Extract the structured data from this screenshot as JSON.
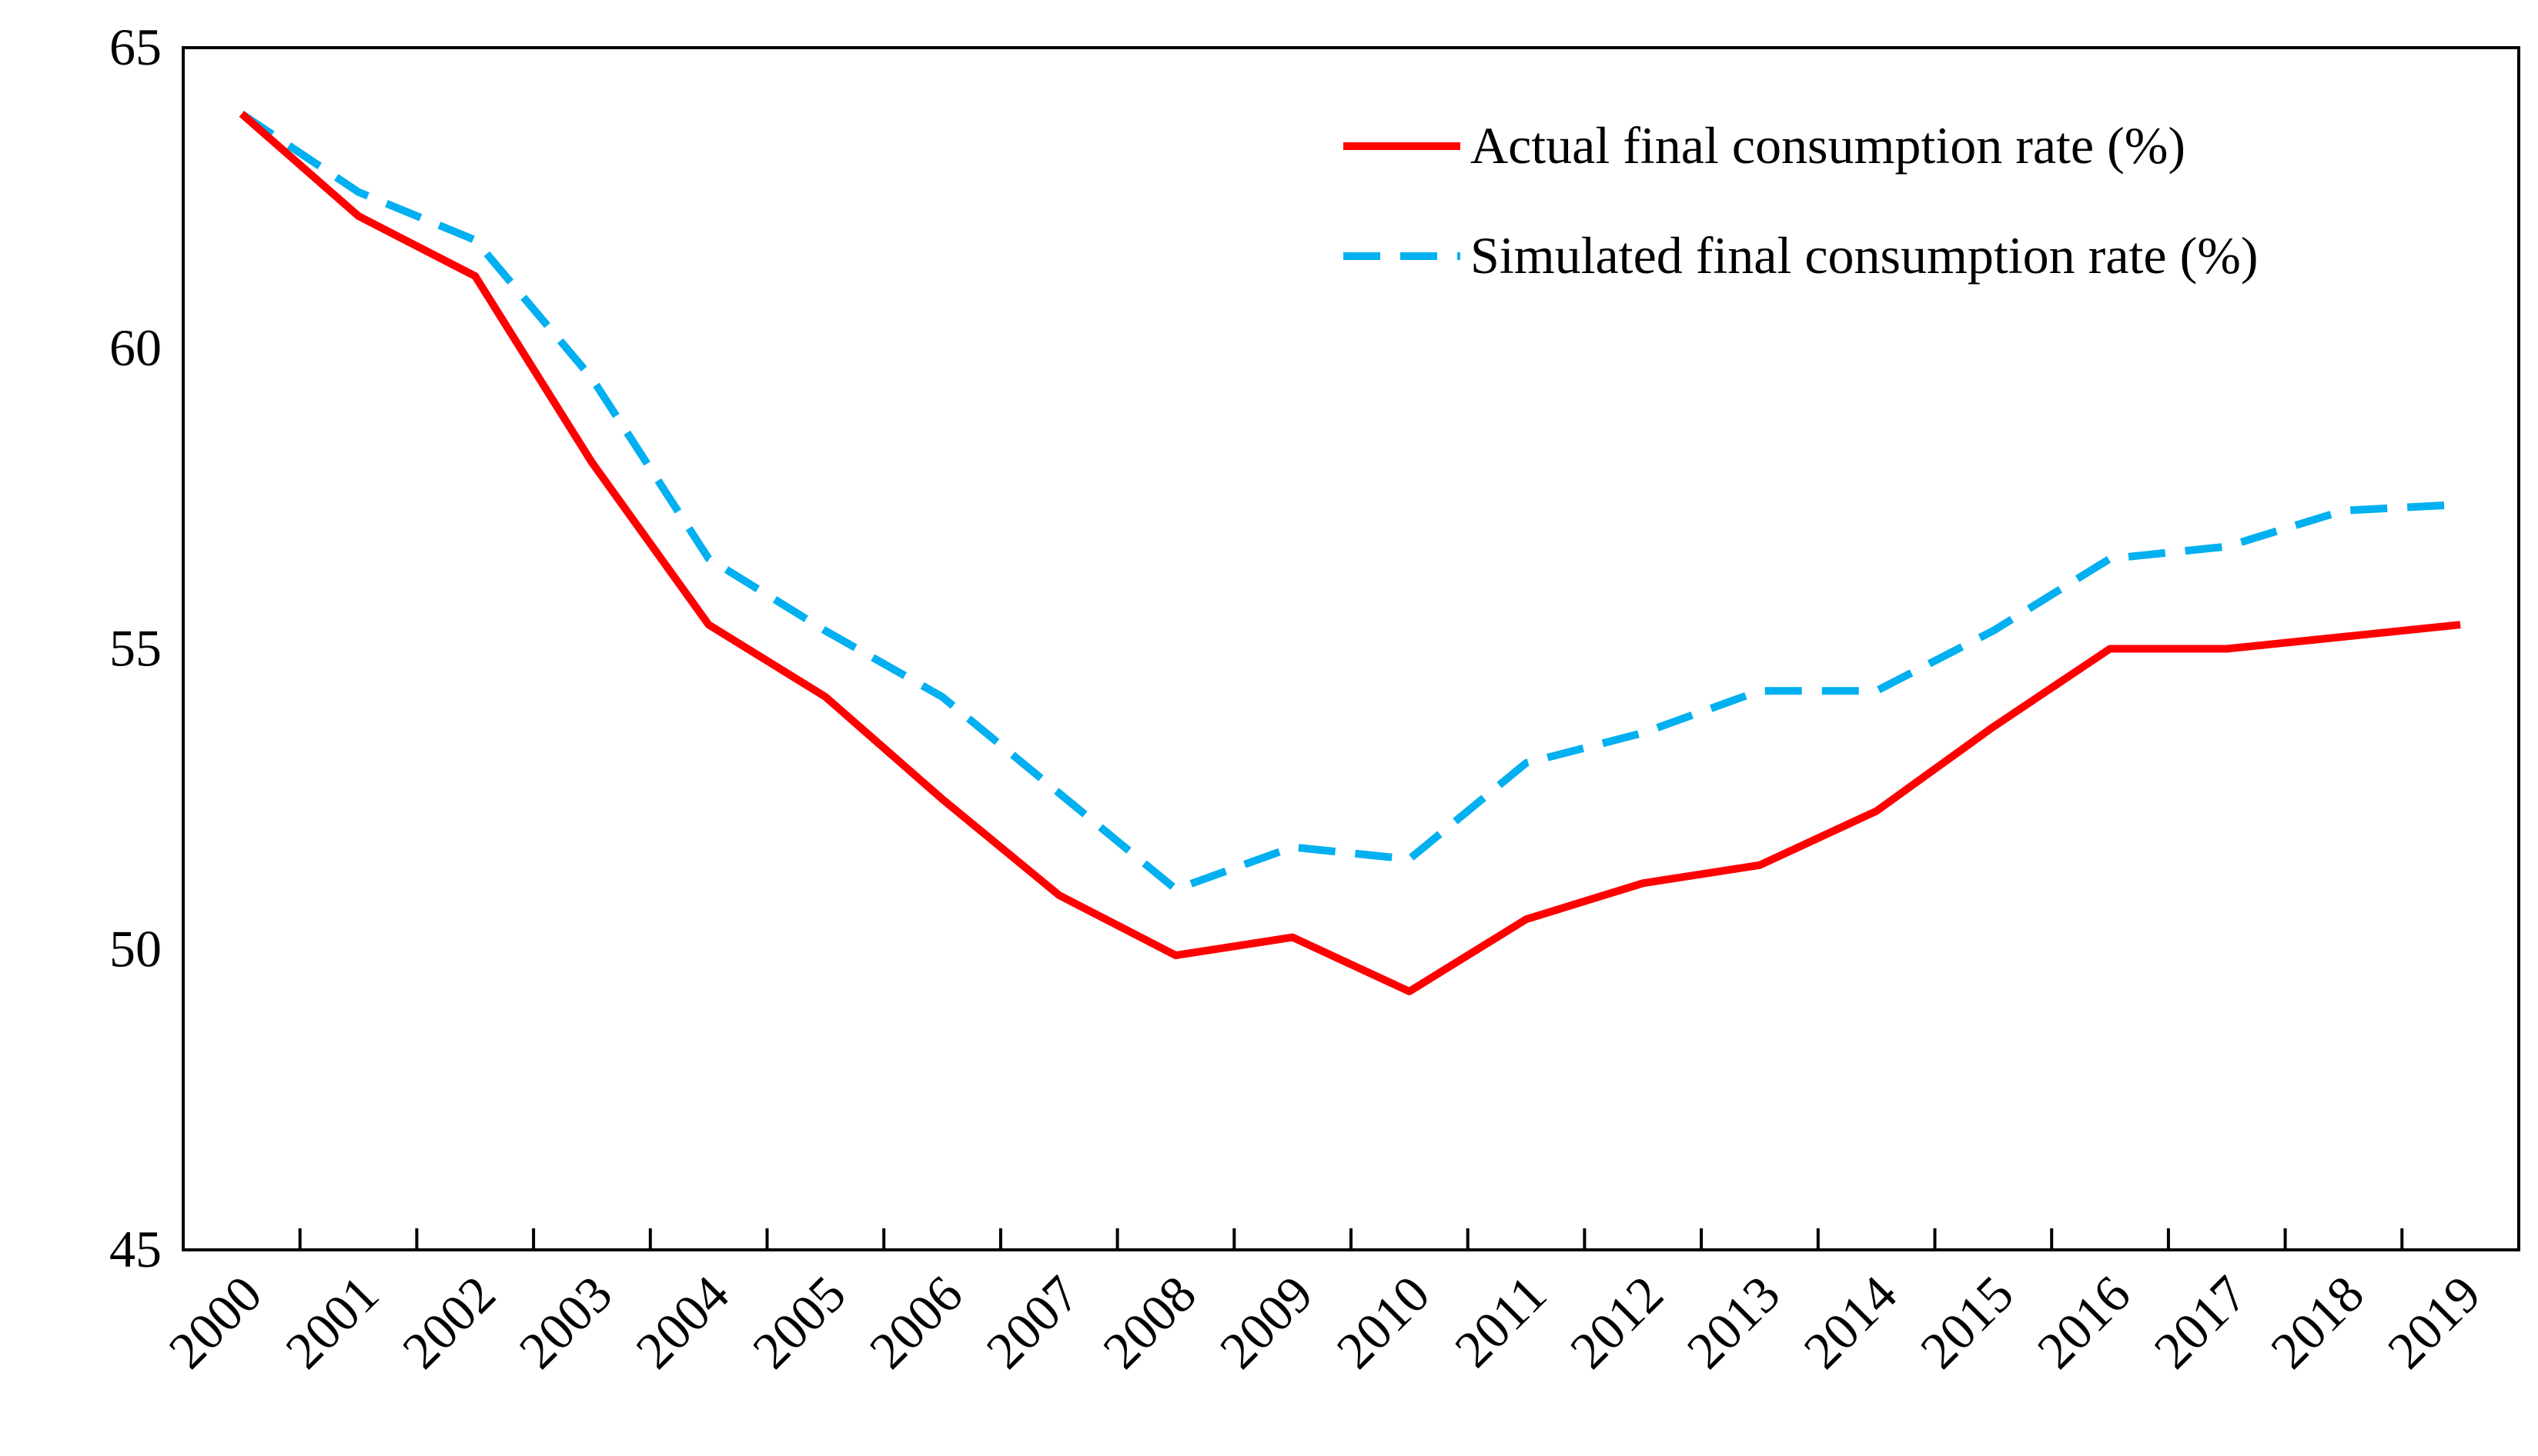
{
  "chart_data": {
    "type": "line",
    "x": [
      "2000",
      "2001",
      "2002",
      "2003",
      "2004",
      "2005",
      "2006",
      "2007",
      "2008",
      "2009",
      "2010",
      "2011",
      "2012",
      "2013",
      "2014",
      "2015",
      "2016",
      "2017",
      "2018",
      "2019"
    ],
    "series": [
      {
        "name": "Actual final consumption rate (%)",
        "color": "#ff0000",
        "style": "solid",
        "values": [
          63.9,
          62.2,
          61.2,
          58.1,
          55.4,
          54.2,
          52.5,
          50.9,
          49.9,
          50.2,
          49.3,
          50.5,
          51.1,
          51.4,
          52.3,
          53.7,
          55.0,
          55.0,
          55.2,
          55.4
        ]
      },
      {
        "name": "Simulated final consumption rate (%)",
        "color": "#00b0f0",
        "style": "dashed",
        "values": [
          63.9,
          62.6,
          61.8,
          59.5,
          56.5,
          55.3,
          54.2,
          52.6,
          51.0,
          51.7,
          51.5,
          53.1,
          53.6,
          54.3,
          54.3,
          55.3,
          56.5,
          56.7,
          57.3,
          57.4
        ]
      }
    ],
    "y_ticks": [
      "45",
      "50",
      "55",
      "60",
      "65"
    ],
    "ylim": [
      45,
      65
    ],
    "title": "",
    "xlabel": "",
    "ylabel": "",
    "legend_position": "top-right",
    "grid": false
  }
}
